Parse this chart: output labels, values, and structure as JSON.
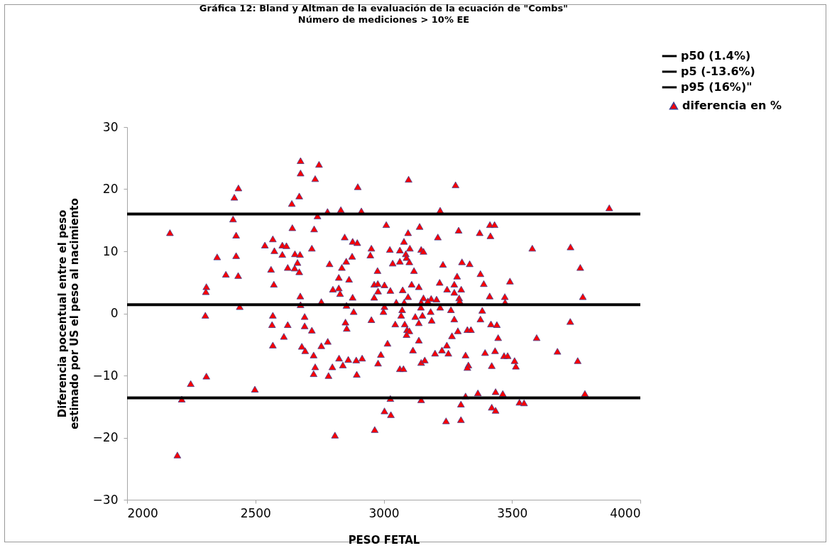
{
  "chart_data": {
    "type": "scatter",
    "title": "Gráfica 12: Bland y Altman de la evaluación de la ecuación de \"Combs\"",
    "subtitle": "Número de mediciones > 10% EE",
    "xlabel": "PESO FETAL",
    "ylabel": "Diferencia pocentual entre el peso estimado por US el peso al nacimiento",
    "xlim": [
      2000,
      4000
    ],
    "xticks": [
      2000,
      2500,
      3000,
      3500,
      4000
    ],
    "ylim": [
      -30,
      30
    ],
    "yticks": [
      -30,
      -20,
      -10,
      0,
      10,
      20,
      30
    ],
    "grid": false,
    "legend": "top right",
    "marker": "triangle",
    "ref_lines": [
      {
        "axis": "y",
        "value": 1.4,
        "label": "p50 (1.4%)",
        "color": "#000000",
        "line_style": "solid"
      },
      {
        "axis": "y",
        "value": -13.6,
        "label": "p5 (-13.6%)",
        "color": "#000000",
        "line_style": "solid"
      },
      {
        "axis": "y",
        "value": 16,
        "label": "p95 (16%)\"",
        "color": "#000000",
        "line_style": "solid"
      }
    ],
    "series": [
      {
        "name": "diferencia en %",
        "color": "#ff0000",
        "x": [
          2676,
          2748,
          2676,
          2733,
          2899,
          2434,
          2418,
          2671,
          2642,
          2781,
          2833,
          2913,
          2742,
          2413,
          2644,
          2729,
          2167,
          2425,
          2568,
          2848,
          2879,
          2897,
          2537,
          2605,
          2621,
          2720,
          2952,
          2574,
          2605,
          2654,
          2674,
          2351,
          2425,
          2877,
          2948,
          2664,
          2854,
          2789,
          2561,
          2626,
          2653,
          2837,
          2671,
          2976,
          2385,
          2433,
          2825,
          2865,
          2572,
          2963,
          2977,
          2309,
          2307,
          2802,
          2825,
          2830,
          2978,
          2675,
          2757,
          2879,
          2963,
          2676,
          2855,
          2439,
          2305,
          2568,
          2692,
          2883,
          2952,
          2565,
          2626,
          2692,
          2851,
          2856,
          2720,
          2611,
          2568,
          2681,
          2757,
          2782,
          2727,
          2694,
          2826,
          2862,
          2893,
          2916,
          2989,
          2800,
          2841,
          2733,
          2727,
          2785,
          2895,
          2978,
          2309,
          2248,
          2498,
          2213,
          2965,
          2810,
          2196,
          3097,
          3280,
          3879,
          3220,
          3010,
          3140,
          3414,
          3432,
          3095,
          3292,
          3374,
          3416,
          3211,
          3079,
          3024,
          3063,
          3102,
          3146,
          3155,
          3086,
          3089,
          3579,
          3728,
          3035,
          3063,
          3100,
          3231,
          3305,
          3335,
          3118,
          3766,
          3377,
          3286,
          3390,
          3492,
          3218,
          3003,
          3109,
          3137,
          3275,
          3247,
          3302,
          3026,
          3074,
          3275,
          3413,
          3472,
          3776,
          3095,
          3155,
          3185,
          3206,
          3294,
          3296,
          3049,
          3080,
          3146,
          3172,
          3220,
          3473,
          3003,
          3072,
          3262,
          3384,
          2999,
          3068,
          3123,
          3151,
          3183,
          3187,
          3275,
          3377,
          3418,
          3441,
          3727,
          3045,
          3082,
          3137,
          3091,
          3100,
          3089,
          3289,
          3326,
          3340,
          3266,
          3446,
          3596,
          3137,
          3015,
          3114,
          3200,
          3227,
          3246,
          3252,
          3319,
          3395,
          3434,
          3469,
          3483,
          3510,
          3515,
          3330,
          3326,
          3421,
          3677,
          3756,
          3063,
          3077,
          3146,
          3160,
          3026,
          3146,
          3319,
          3367,
          3436,
          3464,
          3301,
          3529,
          3547,
          3421,
          3436,
          3003,
          3028,
          3243,
          3301,
          3784,
          3145
        ],
        "values": [
          24.6,
          24.0,
          22.6,
          21.7,
          20.4,
          20.2,
          18.7,
          18.9,
          17.7,
          16.4,
          16.7,
          16.5,
          15.7,
          15.2,
          13.8,
          13.6,
          13.0,
          12.6,
          12.0,
          12.3,
          11.6,
          11.4,
          11.0,
          11.0,
          10.9,
          10.5,
          10.5,
          10.1,
          9.5,
          9.6,
          9.5,
          9.1,
          9.3,
          9.2,
          9.4,
          8.2,
          8.4,
          8.0,
          7.1,
          7.4,
          7.3,
          7.4,
          6.7,
          6.9,
          6.3,
          6.1,
          5.8,
          5.5,
          4.7,
          4.7,
          4.8,
          4.3,
          3.5,
          3.9,
          4.1,
          3.2,
          3.6,
          2.8,
          1.9,
          2.6,
          2.6,
          1.4,
          1.3,
          1.1,
          -0.3,
          -0.3,
          -0.5,
          0.3,
          -1.0,
          -1.8,
          -1.8,
          -2.0,
          -1.4,
          -2.4,
          -2.7,
          -3.7,
          -5.1,
          -5.3,
          -5.2,
          -4.5,
          -6.7,
          -6.0,
          -7.2,
          -7.4,
          -7.5,
          -7.2,
          -6.6,
          -8.6,
          -8.3,
          -8.6,
          -9.7,
          -10.0,
          -9.8,
          -8.0,
          -10.1,
          -11.3,
          -12.2,
          -13.8,
          -18.7,
          -19.6,
          -22.8,
          21.6,
          20.7,
          17.0,
          16.6,
          14.3,
          14.0,
          14.3,
          14.3,
          13.0,
          13.4,
          13.0,
          12.5,
          12.3,
          11.6,
          10.3,
          10.2,
          10.5,
          10.3,
          10.0,
          9.6,
          9.0,
          10.5,
          10.7,
          8.1,
          8.4,
          8.3,
          7.9,
          8.3,
          8.0,
          6.9,
          7.4,
          6.4,
          6.0,
          4.8,
          5.2,
          5.0,
          4.6,
          4.7,
          4.3,
          4.7,
          3.9,
          3.9,
          3.7,
          3.8,
          3.4,
          2.8,
          2.7,
          2.7,
          2.7,
          2.5,
          2.4,
          2.3,
          2.5,
          2.0,
          1.8,
          1.8,
          1.8,
          2.0,
          1.0,
          1.8,
          1.1,
          0.6,
          0.6,
          0.5,
          0.3,
          -0.3,
          -0.5,
          -0.3,
          0.3,
          -1.1,
          -0.9,
          -0.9,
          -1.7,
          -1.8,
          -1.3,
          -1.7,
          -1.7,
          -1.5,
          -2.6,
          -2.8,
          -3.4,
          -2.8,
          -2.6,
          -2.6,
          -3.6,
          -3.9,
          -3.9,
          -4.3,
          -4.8,
          -5.9,
          -6.4,
          -5.9,
          -5.1,
          -6.4,
          -6.7,
          -6.3,
          -6.0,
          -6.8,
          -6.8,
          -7.6,
          -8.5,
          -8.3,
          -8.7,
          -8.4,
          -6.1,
          -7.6,
          -8.9,
          -8.9,
          -7.9,
          -7.5,
          -13.7,
          -13.9,
          -13.3,
          -12.8,
          -12.6,
          -12.9,
          -14.6,
          -14.3,
          -14.4,
          -15.1,
          -15.6,
          -15.7,
          -16.3,
          -17.3,
          -17.1,
          -12.9,
          1.0
        ]
      }
    ]
  }
}
